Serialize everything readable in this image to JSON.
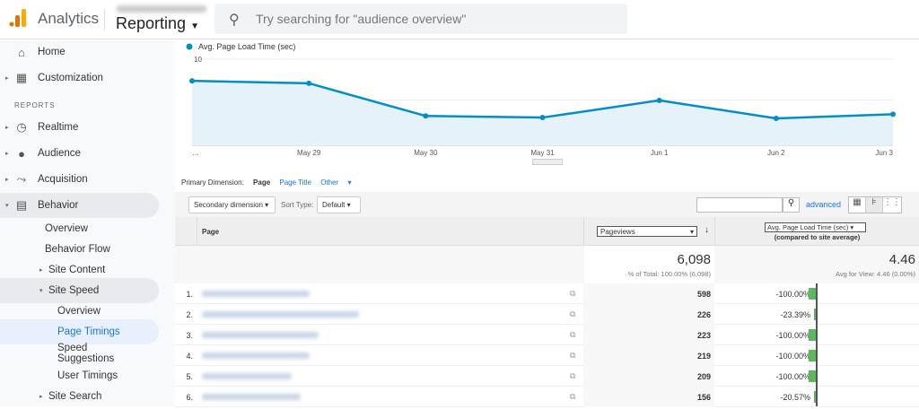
{
  "header": {
    "app": "Analytics",
    "section": "Reporting",
    "search_placeholder": "Try searching for \"audience overview\""
  },
  "sidebar": {
    "reports_label": "REPORTS",
    "items": [
      {
        "label": "Home"
      },
      {
        "label": "Customization"
      },
      {
        "label": "Realtime"
      },
      {
        "label": "Audience"
      },
      {
        "label": "Acquisition"
      },
      {
        "label": "Behavior"
      },
      {
        "label": "Overview"
      },
      {
        "label": "Behavior Flow"
      },
      {
        "label": "Site Content"
      },
      {
        "label": "Site Speed"
      },
      {
        "label": "Overview"
      },
      {
        "label": "Page Timings"
      },
      {
        "label": "Speed Suggestions"
      },
      {
        "label": "User Timings"
      },
      {
        "label": "Site Search"
      }
    ]
  },
  "chart_data": {
    "type": "area",
    "legend": "Avg. Page Load Time (sec)",
    "color": "#058dc7",
    "x": [
      "…",
      "May 29",
      "May 30",
      "May 31",
      "Jun 1",
      "Jun 2",
      "Jun 3"
    ],
    "values": [
      7.9,
      7.6,
      3.6,
      3.4,
      5.5,
      3.3,
      3.8
    ],
    "yticks": [
      5,
      10
    ],
    "ylim": [
      0,
      10.5
    ],
    "grid": true
  },
  "dimension": {
    "label": "Primary Dimension:",
    "active": "Page",
    "options": [
      "Page Title",
      "Other"
    ]
  },
  "toolbar": {
    "secondary": "Secondary dimension",
    "sort_label": "Sort Type:",
    "sort_value": "Default",
    "advanced": "advanced"
  },
  "table": {
    "col_page": "Page",
    "col_metric": "Pageviews",
    "col_compare": "Avg. Page Load Time (sec)",
    "col_compare_sub": "(compared to site average)",
    "total_pv": "6,098",
    "total_pv_sub": "% of Total: 100.00% (6,098)",
    "total_avg": "4.46",
    "total_avg_sub": "Avg for View: 4.46 (0.00%)",
    "rows": [
      {
        "n": "1.",
        "pv": "598",
        "pct": "-100.00%",
        "v": -100
      },
      {
        "n": "2.",
        "pv": "226",
        "pct": "-23.39%",
        "v": -23.39
      },
      {
        "n": "3.",
        "pv": "223",
        "pct": "-100.00%",
        "v": -100
      },
      {
        "n": "4.",
        "pv": "219",
        "pct": "-100.00%",
        "v": -100
      },
      {
        "n": "5.",
        "pv": "209",
        "pct": "-100.00%",
        "v": -100
      },
      {
        "n": "6.",
        "pv": "156",
        "pct": "-20.57%",
        "v": -20.57
      }
    ]
  }
}
